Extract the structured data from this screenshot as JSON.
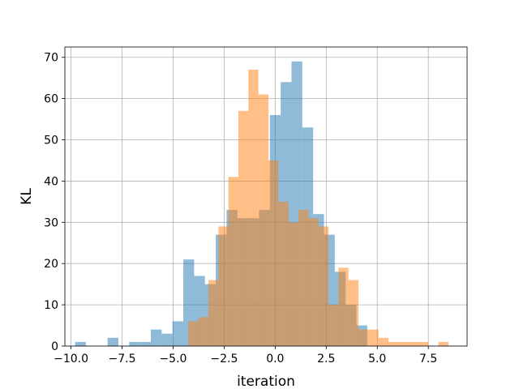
{
  "chart_data": {
    "type": "bar",
    "subtype": "overlapping-histogram",
    "title": "",
    "xlabel": "iteration",
    "ylabel": "KL",
    "xlim": [
      -10.3,
      9.4
    ],
    "ylim": [
      0,
      72.5
    ],
    "xticks": [
      -10.0,
      -7.5,
      -5.0,
      -2.5,
      0.0,
      2.5,
      5.0,
      7.5
    ],
    "xtick_labels": [
      "−10.0",
      "−7.5",
      "−5.0",
      "−2.5",
      "0.0",
      "2.5",
      "5.0",
      "7.5"
    ],
    "yticks": [
      0,
      10,
      20,
      30,
      40,
      50,
      60,
      70
    ],
    "ytick_labels": [
      "0",
      "10",
      "20",
      "30",
      "40",
      "50",
      "60",
      "70"
    ],
    "grid": true,
    "legend": "none",
    "series": [
      {
        "color": "#1f77b4",
        "opacity": 0.5,
        "bin_edges": [
          -9.8,
          -9.27,
          -8.74,
          -8.21,
          -7.68,
          -7.15,
          -6.62,
          -6.09,
          -5.56,
          -5.03,
          -4.5,
          -3.97,
          -3.44,
          -2.91,
          -2.38,
          -1.85,
          -1.32,
          -0.79,
          -0.26,
          0.27,
          0.8,
          1.33,
          1.86,
          2.39,
          2.92,
          3.45,
          3.98,
          4.51
        ],
        "counts": [
          1,
          0,
          0,
          2,
          0,
          1,
          1,
          4,
          3,
          6,
          21,
          17,
          15,
          27,
          33,
          31,
          31,
          33,
          56,
          64,
          69,
          53,
          32,
          27,
          18,
          10,
          5
        ]
      },
      {
        "color": "#ff7f0e",
        "opacity": 0.5,
        "bin_edges": [
          -4.25,
          -3.76,
          -3.27,
          -2.78,
          -2.29,
          -1.8,
          -1.31,
          -0.82,
          -0.33,
          0.16,
          0.65,
          1.14,
          1.63,
          2.12,
          2.61,
          3.1,
          3.59,
          4.08,
          4.57,
          5.06,
          5.55,
          6.04,
          6.53,
          7.02,
          7.51,
          8.0,
          8.49,
          8.98
        ],
        "counts": [
          6,
          7,
          16,
          29,
          41,
          57,
          67,
          61,
          45,
          35,
          30,
          33,
          31,
          29,
          10,
          19,
          16,
          4,
          4,
          2,
          1,
          1,
          1,
          1,
          0,
          1,
          0
        ]
      }
    ]
  }
}
